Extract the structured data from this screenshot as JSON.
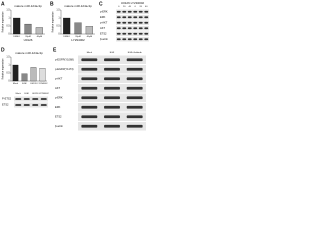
{
  "panels": [
    "A",
    "B",
    "C",
    "D",
    "E"
  ],
  "chart_data": [
    {
      "type": "bar",
      "title": "mature miR-124a-3p",
      "ylabel": "Relative expression",
      "xlabel": "U0126",
      "categories": [
        "DMSO",
        "20μM",
        "40μM"
      ],
      "values": [
        1,
        0.62,
        0.41
      ],
      "colors": [
        "#222222",
        "#888888",
        "#bbbbbb"
      ],
      "ylim": [
        0,
        1.5
      ],
      "yticks": [
        0,
        0.5,
        1,
        1.5
      ]
    },
    {
      "type": "bar",
      "title": "mature miR-124a-3p",
      "ylabel": "Relative expression",
      "xlabel": "LY294002",
      "categories": [
        "DMSO",
        "20μM",
        "40μM"
      ],
      "values": [
        1,
        0.7,
        0.48
      ],
      "colors": [
        "#222222",
        "#888888",
        "#bbbbbb"
      ],
      "ylim": [
        0,
        1.5
      ],
      "yticks": [
        0,
        0.5,
        1,
        1.5
      ]
    },
    {
      "type": "bar",
      "title": "mature miR-124a-3p",
      "ylabel": "Relative expression",
      "xlabel": "",
      "categories": [
        "Mock",
        "EGF",
        "U0126",
        "LY294002"
      ],
      "values": [
        1,
        0.45,
        0.85,
        0.8
      ],
      "colors": [
        "#222222",
        "#888888",
        "#bbbbbb",
        "#dddddd"
      ],
      "ylim": [
        0,
        1.5
      ],
      "yticks": [
        0,
        0.5,
        1,
        1.5
      ]
    }
  ],
  "blots": [
    {
      "header": "U0126      LY294002",
      "lanes": [
        "0",
        "20",
        "40",
        "0",
        "20",
        "40"
      ],
      "rows": [
        "p-ERK",
        "ERK",
        "p-AKT",
        "AKT",
        "ETS2",
        "β-actin"
      ]
    },
    {
      "header": "",
      "lanes": [
        "Mock",
        "EGF",
        "U0126",
        "LY294002"
      ],
      "rows": [
        "P-ETS2",
        "ETS2"
      ]
    },
    {
      "header": "",
      "lanes": [
        "Mock",
        "EGF",
        "EGF+Gefitinib"
      ],
      "rows": [
        "p-EGFR(Y1068)",
        "p-EGFR(Y1173)",
        "p-AKT",
        "AKT",
        "p-ERK",
        "ERK",
        "ETS2",
        "β-actin"
      ]
    }
  ]
}
